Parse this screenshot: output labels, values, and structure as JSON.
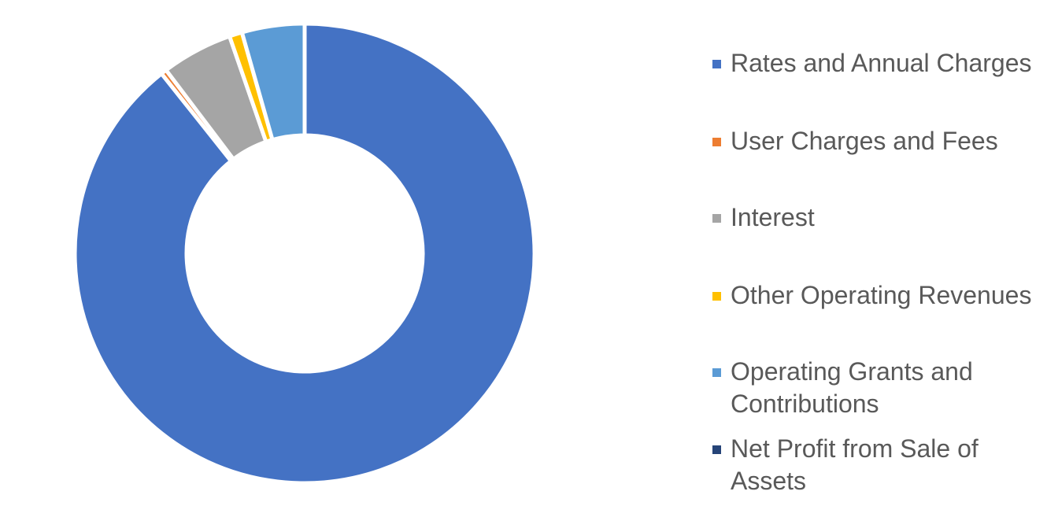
{
  "chart_data": {
    "type": "pie",
    "variant": "donut",
    "title": "",
    "legend_position": "right",
    "slices": [
      {
        "label": "Rates and Annual Charges",
        "value": 89.3,
        "color": "#4472C4"
      },
      {
        "label": "User Charges and Fees",
        "value": 0.4,
        "color": "#ED7D31"
      },
      {
        "label": "Interest",
        "value": 5.0,
        "color": "#A5A5A5"
      },
      {
        "label": "Other Operating Revenues",
        "value": 0.9,
        "color": "#FFC000"
      },
      {
        "label": "Operating Grants and Contributions",
        "value": 4.4,
        "color": "#5B9BD5"
      },
      {
        "label": "Net Profit from Sale of Assets",
        "value": 0.0,
        "color": "#264478"
      }
    ]
  }
}
